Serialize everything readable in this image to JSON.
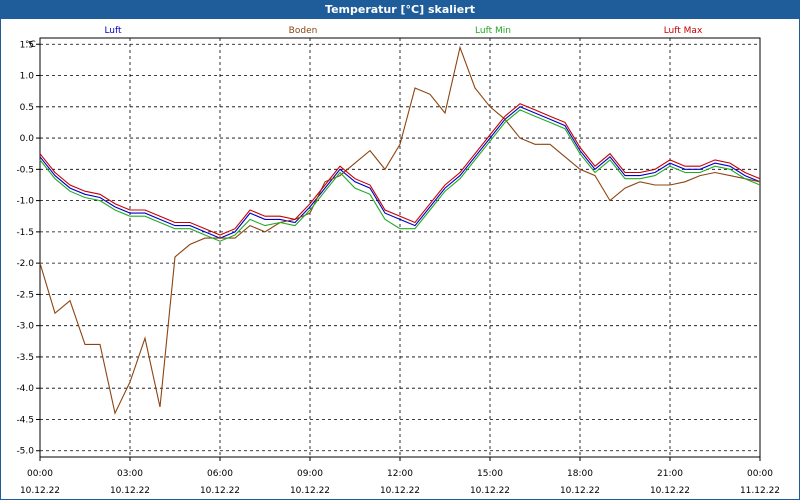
{
  "window": {
    "title": "Temperatur [°C] skaliert"
  },
  "chart_data": {
    "type": "line",
    "title": "Temperatur [°C] skaliert",
    "ylabel": "°C",
    "xlabel": "",
    "ylim": [
      -5.1,
      1.6
    ],
    "xlim": [
      0,
      24
    ],
    "grid": true,
    "legend_position": "top",
    "y_ticks": [
      1.5,
      1.0,
      0.5,
      0.0,
      -0.5,
      -1.0,
      -1.5,
      -2.0,
      -2.5,
      -3.0,
      -3.5,
      -4.0,
      -4.5,
      -5.0
    ],
    "y_tick_labels": [
      "1.5",
      "1.0",
      "0.5",
      "0.0",
      "-0.5",
      "-1.0",
      "-1.5",
      "-2.0",
      "-2.5",
      "-3.0",
      "-3.5",
      "-4.0",
      "-4.5",
      "-5.0"
    ],
    "x_ticks": [
      {
        "x": 0,
        "time": "00:00",
        "date": "10.12.22"
      },
      {
        "x": 3,
        "time": "03:00",
        "date": "10.12.22"
      },
      {
        "x": 6,
        "time": "06:00",
        "date": "10.12.22"
      },
      {
        "x": 9,
        "time": "09:00",
        "date": "10.12.22"
      },
      {
        "x": 12,
        "time": "12:00",
        "date": "10.12.22"
      },
      {
        "x": 15,
        "time": "15:00",
        "date": "10.12.22"
      },
      {
        "x": 18,
        "time": "18:00",
        "date": "10.12.22"
      },
      {
        "x": 21,
        "time": "21:00",
        "date": "10.12.22"
      },
      {
        "x": 24,
        "time": "00:00",
        "date": "11.12.22"
      }
    ],
    "series": [
      {
        "name": "Luft",
        "color": "#0000c8",
        "x": [
          0,
          0.5,
          1,
          1.5,
          2,
          2.5,
          3,
          3.5,
          4,
          4.5,
          5,
          5.5,
          6,
          6.5,
          7,
          7.5,
          8,
          8.5,
          9,
          9.5,
          10,
          10.5,
          11,
          11.5,
          12,
          12.5,
          13,
          13.5,
          14,
          14.5,
          15,
          15.5,
          16,
          16.5,
          17,
          17.5,
          18,
          18.5,
          19,
          19.5,
          20,
          20.5,
          21,
          21.5,
          22,
          22.5,
          23,
          23.5,
          24
        ],
        "y": [
          -0.3,
          -0.6,
          -0.8,
          -0.9,
          -0.95,
          -1.1,
          -1.2,
          -1.2,
          -1.3,
          -1.4,
          -1.4,
          -1.5,
          -1.6,
          -1.5,
          -1.2,
          -1.3,
          -1.3,
          -1.35,
          -1.1,
          -0.8,
          -0.5,
          -0.7,
          -0.8,
          -1.2,
          -1.3,
          -1.4,
          -1.1,
          -0.8,
          -0.6,
          -0.3,
          0.0,
          0.3,
          0.5,
          0.4,
          0.3,
          0.2,
          -0.2,
          -0.5,
          -0.3,
          -0.6,
          -0.6,
          -0.55,
          -0.4,
          -0.5,
          -0.5,
          -0.4,
          -0.45,
          -0.6,
          -0.7
        ]
      },
      {
        "name": "Boden",
        "color": "#8b4513",
        "x": [
          0,
          0.5,
          1,
          1.5,
          2,
          2.5,
          3,
          3.5,
          4,
          4.5,
          5,
          5.5,
          6,
          6.5,
          7,
          7.5,
          8,
          8.5,
          9,
          9.5,
          10,
          10.5,
          11,
          11.5,
          12,
          12.5,
          13,
          13.5,
          14,
          14.5,
          15,
          15.5,
          16,
          16.5,
          17,
          17.5,
          18,
          18.5,
          19,
          19.5,
          20,
          20.5,
          21,
          21.5,
          22,
          22.5,
          23,
          23.5,
          24
        ],
        "y": [
          -2.0,
          -2.8,
          -2.6,
          -3.3,
          -3.3,
          -4.4,
          -3.9,
          -3.2,
          -4.3,
          -1.9,
          -1.7,
          -1.6,
          -1.6,
          -1.6,
          -1.4,
          -1.5,
          -1.35,
          -1.3,
          -1.2,
          -0.7,
          -0.6,
          -0.4,
          -0.2,
          -0.5,
          -0.1,
          0.8,
          0.7,
          0.4,
          1.45,
          0.8,
          0.5,
          0.3,
          0.0,
          -0.1,
          -0.1,
          -0.3,
          -0.5,
          -0.6,
          -1.0,
          -0.8,
          -0.7,
          -0.75,
          -0.75,
          -0.7,
          -0.6,
          -0.55,
          -0.6,
          -0.65,
          -0.7
        ]
      },
      {
        "name": "Luft Min",
        "color": "#22aa22",
        "x": [
          0,
          0.5,
          1,
          1.5,
          2,
          2.5,
          3,
          3.5,
          4,
          4.5,
          5,
          5.5,
          6,
          6.5,
          7,
          7.5,
          8,
          8.5,
          9,
          9.5,
          10,
          10.5,
          11,
          11.5,
          12,
          12.5,
          13,
          13.5,
          14,
          14.5,
          15,
          15.5,
          16,
          16.5,
          17,
          17.5,
          18,
          18.5,
          19,
          19.5,
          20,
          20.5,
          21,
          21.5,
          22,
          22.5,
          23,
          23.5,
          24
        ],
        "y": [
          -0.35,
          -0.65,
          -0.85,
          -0.95,
          -1.0,
          -1.15,
          -1.25,
          -1.25,
          -1.35,
          -1.45,
          -1.45,
          -1.55,
          -1.65,
          -1.55,
          -1.3,
          -1.4,
          -1.35,
          -1.4,
          -1.15,
          -0.85,
          -0.55,
          -0.8,
          -0.9,
          -1.3,
          -1.45,
          -1.45,
          -1.15,
          -0.85,
          -0.65,
          -0.35,
          -0.05,
          0.25,
          0.45,
          0.35,
          0.25,
          0.15,
          -0.25,
          -0.55,
          -0.35,
          -0.65,
          -0.65,
          -0.6,
          -0.45,
          -0.55,
          -0.55,
          -0.45,
          -0.5,
          -0.65,
          -0.75
        ]
      },
      {
        "name": "Luft Max",
        "color": "#c80000",
        "x": [
          0,
          0.5,
          1,
          1.5,
          2,
          2.5,
          3,
          3.5,
          4,
          4.5,
          5,
          5.5,
          6,
          6.5,
          7,
          7.5,
          8,
          8.5,
          9,
          9.5,
          10,
          10.5,
          11,
          11.5,
          12,
          12.5,
          13,
          13.5,
          14,
          14.5,
          15,
          15.5,
          16,
          16.5,
          17,
          17.5,
          18,
          18.5,
          19,
          19.5,
          20,
          20.5,
          21,
          21.5,
          22,
          22.5,
          23,
          23.5,
          24
        ],
        "y": [
          -0.25,
          -0.55,
          -0.75,
          -0.85,
          -0.9,
          -1.05,
          -1.15,
          -1.15,
          -1.25,
          -1.35,
          -1.35,
          -1.45,
          -1.55,
          -1.45,
          -1.15,
          -1.25,
          -1.25,
          -1.3,
          -1.05,
          -0.75,
          -0.45,
          -0.65,
          -0.75,
          -1.15,
          -1.25,
          -1.35,
          -1.05,
          -0.75,
          -0.55,
          -0.25,
          0.05,
          0.35,
          0.55,
          0.45,
          0.35,
          0.25,
          -0.15,
          -0.45,
          -0.25,
          -0.55,
          -0.55,
          -0.5,
          -0.35,
          -0.45,
          -0.45,
          -0.35,
          -0.4,
          -0.55,
          -0.65
        ]
      }
    ]
  }
}
